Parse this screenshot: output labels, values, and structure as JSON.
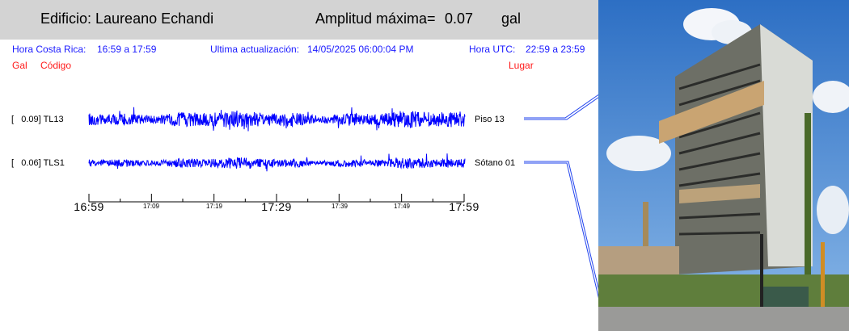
{
  "header": {
    "building_label": "Edificio: Laureano Echandi",
    "amplitude_label": "Amplitud máxima=",
    "amplitude_value": "0.07",
    "amplitude_unit": "gal"
  },
  "info": {
    "cr_time_label": "Hora Costa Rica:",
    "cr_time_value": "16:59 a 17:59",
    "update_label": "Ultima actualización:",
    "update_value": "14/05/2025 06:00:04 PM",
    "utc_label": "Hora UTC:",
    "utc_value": "22:59 a 23:59"
  },
  "columns": {
    "gal": "Gal",
    "codigo": "Código",
    "lugar": "Lugar"
  },
  "sensors": [
    {
      "value": "[   0.09] ",
      "code": "TL13",
      "place": "Piso 13",
      "peak_gal": 0.09
    },
    {
      "value": "[   0.06] ",
      "code": "TLS1",
      "place": "Sótano 01",
      "peak_gal": 0.06
    }
  ],
  "time_axis": {
    "major": [
      "16:59",
      "17:29",
      "17:59"
    ],
    "minor": [
      "17:09",
      "17:19",
      "17:39",
      "17:49"
    ]
  },
  "colors": {
    "header_bg": "#d3d3d3",
    "info_blue": "#1a1aff",
    "column_red": "#ff1a1a",
    "trace_blue": "#0000ff"
  }
}
